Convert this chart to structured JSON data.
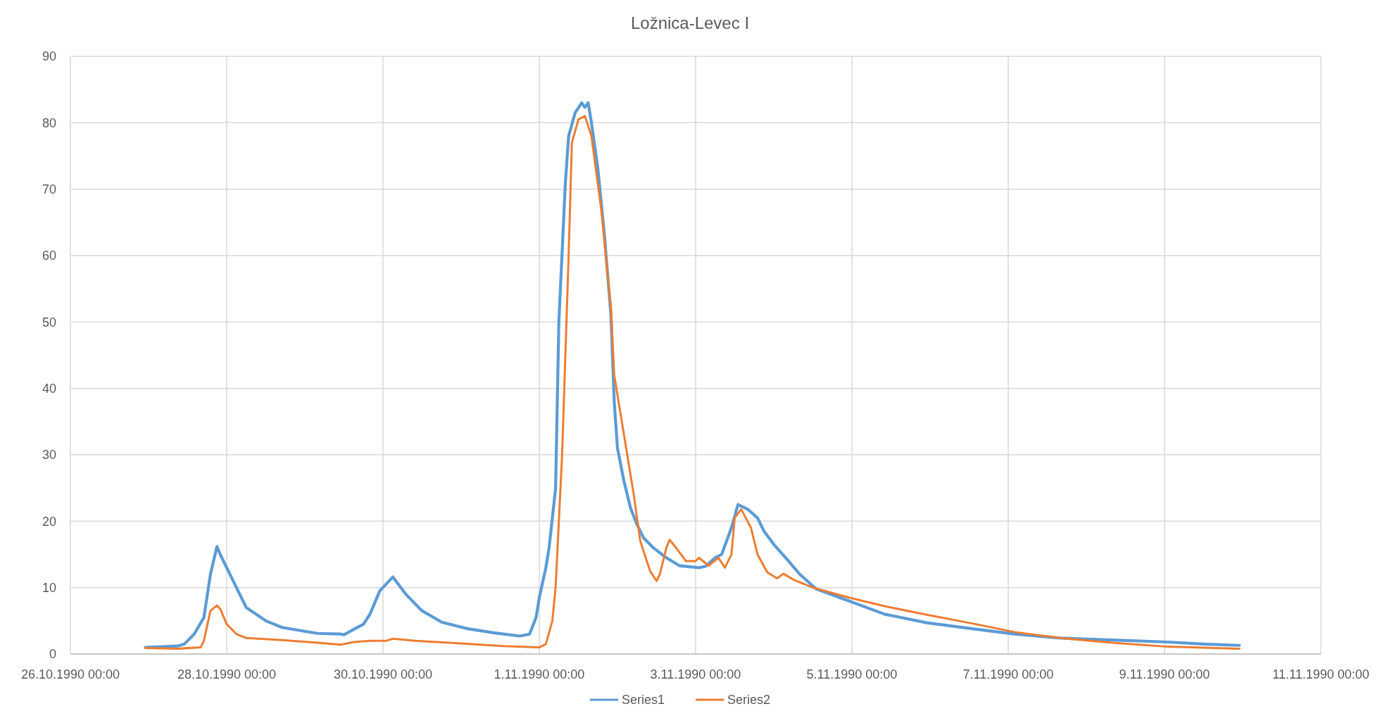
{
  "chart_data": {
    "type": "line",
    "title": "Ložnica-Levec I",
    "xlim": [
      "1990-10-26",
      "1990-11-11"
    ],
    "xticks": [
      {
        "value": "1990-10-26",
        "label": "26.10.1990 00:00"
      },
      {
        "value": "1990-10-28",
        "label": "28.10.1990 00:00"
      },
      {
        "value": "1990-10-30",
        "label": "30.10.1990 00:00"
      },
      {
        "value": "1990-11-01",
        "label": "1.11.1990 00:00"
      },
      {
        "value": "1990-11-03",
        "label": "3.11.1990 00:00"
      },
      {
        "value": "1990-11-05",
        "label": "5.11.1990 00:00"
      },
      {
        "value": "1990-11-07",
        "label": "7.11.1990 00:00"
      },
      {
        "value": "1990-11-09",
        "label": "9.11.1990 00:00"
      },
      {
        "value": "1990-11-11",
        "label": "11.11.1990 00:00"
      }
    ],
    "ylim": [
      0,
      90
    ],
    "yticks": [
      0,
      10,
      20,
      30,
      40,
      50,
      60,
      70,
      80,
      90
    ],
    "grid": true,
    "legend": "bottom",
    "line_style": "solid",
    "marker": "none",
    "series": [
      {
        "name": "Series1",
        "color": "#5b9bd5",
        "x": [
          "1990-10-26T23:00",
          "1990-10-27T09:00",
          "1990-10-27T11:00",
          "1990-10-27T14:00",
          "1990-10-27T17:00",
          "1990-10-27T19:00",
          "1990-10-27T21:00",
          "1990-10-27T22:00",
          "1990-10-28T01:00",
          "1990-10-28T04:00",
          "1990-10-28T06:00",
          "1990-10-28T12:00",
          "1990-10-28T17:00",
          "1990-10-28T23:00",
          "1990-10-29T04:00",
          "1990-10-29T11:00",
          "1990-10-29T12:00",
          "1990-10-29T18:00",
          "1990-10-29T20:00",
          "1990-10-29T23:00",
          "1990-10-30T03:00",
          "1990-10-30T07:00",
          "1990-10-30T12:00",
          "1990-10-30T18:00",
          "1990-10-31T02:00",
          "1990-10-31T10:00",
          "1990-10-31T18:00",
          "1990-10-31T21:00",
          "1990-10-31T23:00",
          "1990-11-01T00:00",
          "1990-11-01T02:00",
          "1990-11-01T03:00",
          "1990-11-01T05:00",
          "1990-11-01T06:00",
          "1990-11-01T08:00",
          "1990-11-01T09:00",
          "1990-11-01T11:00",
          "1990-11-01T13:00",
          "1990-11-01T14:00",
          "1990-11-01T15:00",
          "1990-11-01T16:00",
          "1990-11-01T18:00",
          "1990-11-01T20:00",
          "1990-11-01T22:00",
          "1990-11-01T23:00",
          "1990-11-02T00:00",
          "1990-11-02T02:00",
          "1990-11-02T04:00",
          "1990-11-02T06:00",
          "1990-11-02T08:00",
          "1990-11-02T11:00",
          "1990-11-02T15:00",
          "1990-11-02T19:00",
          "1990-11-03T01:00",
          "1990-11-03T03:00",
          "1990-11-03T06:00",
          "1990-11-03T08:00",
          "1990-11-03T11:00",
          "1990-11-03T13:00",
          "1990-11-03T16:00",
          "1990-11-03T19:00",
          "1990-11-03T21:00",
          "1990-11-04T00:00",
          "1990-11-04T04:00",
          "1990-11-04T08:00",
          "1990-11-04T13:00",
          "1990-11-04T23:00",
          "1990-11-05T10:00",
          "1990-11-05T23:00",
          "1990-11-06T13:00",
          "1990-11-07T02:00",
          "1990-11-07T16:00",
          "1990-11-08T08:00",
          "1990-11-09T01:00",
          "1990-11-09T12:00",
          "1990-11-09T23:00"
        ],
        "values": [
          1.0,
          1.2,
          1.5,
          3,
          5.5,
          12,
          16.2,
          15,
          12,
          9,
          7,
          5,
          4,
          3.5,
          3.1,
          3.0,
          2.9,
          4.5,
          6,
          9.5,
          11.6,
          9,
          6.5,
          4.8,
          3.8,
          3.2,
          2.7,
          3,
          5.5,
          8.5,
          13,
          16,
          25,
          50,
          71,
          78,
          81.5,
          83,
          82.3,
          83,
          80,
          73,
          63,
          51,
          38,
          31,
          26,
          22,
          19.5,
          17.5,
          16,
          14.5,
          13.3,
          13,
          13.2,
          14.5,
          15,
          19,
          22.5,
          21.8,
          20.5,
          18.5,
          16.5,
          14.3,
          12,
          9.8,
          8,
          6,
          4.7,
          3.8,
          3.0,
          2.4,
          2.1,
          1.8,
          1.5,
          1.3
        ]
      },
      {
        "name": "Series2",
        "color": "#ed7d31",
        "x": [
          "1990-10-26T23:00",
          "1990-10-27T09:00",
          "1990-10-27T16:00",
          "1990-10-27T17:00",
          "1990-10-27T19:00",
          "1990-10-27T21:00",
          "1990-10-27T22:00",
          "1990-10-28T00:00",
          "1990-10-28T03:00",
          "1990-10-28T06:00",
          "1990-10-28T17:00",
          "1990-10-29T04:00",
          "1990-10-29T11:00",
          "1990-10-29T15:00",
          "1990-10-29T20:00",
          "1990-10-30T01:00",
          "1990-10-30T03:00",
          "1990-10-30T10:00",
          "1990-10-31T00:00",
          "1990-10-31T13:00",
          "1990-11-01T00:00",
          "1990-11-01T02:00",
          "1990-11-01T04:00",
          "1990-11-01T05:00",
          "1990-11-01T07:00",
          "1990-11-01T09:00",
          "1990-11-01T10:00",
          "1990-11-01T12:00",
          "1990-11-01T14:00",
          "1990-11-01T16:00",
          "1990-11-01T19:00",
          "1990-11-01T22:00",
          "1990-11-01T23:00",
          "1990-11-02T02:00",
          "1990-11-02T05:00",
          "1990-11-02T07:00",
          "1990-11-02T10:00",
          "1990-11-02T12:00",
          "1990-11-02T13:00",
          "1990-11-02T15:00",
          "1990-11-02T16:00",
          "1990-11-02T18:00",
          "1990-11-02T21:00",
          "1990-11-03T00:00",
          "1990-11-03T01:00",
          "1990-11-03T04:00",
          "1990-11-03T07:00",
          "1990-11-03T09:00",
          "1990-11-03T11:00",
          "1990-11-03T12:00",
          "1990-11-03T14:00",
          "1990-11-03T17:00",
          "1990-11-03T19:00",
          "1990-11-03T22:00",
          "1990-11-04T01:00",
          "1990-11-04T03:00",
          "1990-11-04T06:00",
          "1990-11-04T12:00",
          "1990-11-04T23:00",
          "1990-11-05T10:00",
          "1990-11-05T23:00",
          "1990-11-06T13:00",
          "1990-11-07T02:00",
          "1990-11-07T16:00",
          "1990-11-08T08:00",
          "1990-11-09T01:00",
          "1990-11-09T23:00"
        ],
        "values": [
          0.9,
          0.8,
          1.0,
          2,
          6.5,
          7.3,
          6.8,
          4.5,
          3,
          2.4,
          2.1,
          1.7,
          1.4,
          1.8,
          2.0,
          2.0,
          2.3,
          2.0,
          1.6,
          1.2,
          1.0,
          1.5,
          5,
          10,
          30,
          60,
          77,
          80.5,
          81,
          78,
          67,
          52,
          42,
          33,
          24,
          17,
          12.5,
          11,
          12,
          16,
          17.2,
          16,
          14,
          14,
          14.5,
          13.3,
          14.5,
          13,
          15,
          20.5,
          21.8,
          19,
          15,
          12.3,
          11.4,
          12.1,
          11.2,
          10,
          8.5,
          7.2,
          5.9,
          4.6,
          3.3,
          2.4,
          1.7,
          1.1,
          0.8
        ]
      }
    ]
  }
}
